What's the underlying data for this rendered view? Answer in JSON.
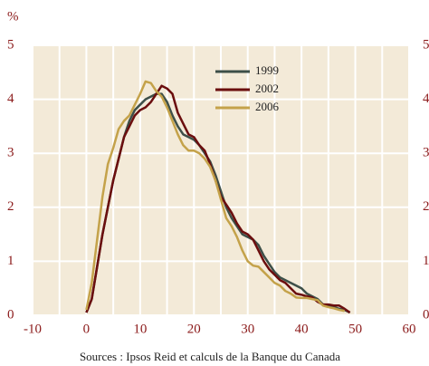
{
  "chart_data": {
    "type": "line",
    "y_label": "%",
    "source": "Sources : Ipsos Reid et calculs de la Banque du Canada",
    "x": [
      0,
      1,
      2,
      3,
      4,
      5,
      6,
      7,
      8,
      9,
      10,
      11,
      12,
      13,
      14,
      15,
      16,
      17,
      18,
      19,
      20,
      21,
      22,
      23,
      24,
      25,
      26,
      27,
      28,
      29,
      30,
      31,
      32,
      33,
      34,
      35,
      36,
      37,
      38,
      39,
      40,
      41,
      42,
      43,
      44,
      45,
      46,
      47,
      48,
      49
    ],
    "series": [
      {
        "name": "1999",
        "color": "#3d4f48",
        "values": [
          0.05,
          0.3,
          0.9,
          1.5,
          2.0,
          2.5,
          2.9,
          3.3,
          3.6,
          3.8,
          3.9,
          4.0,
          4.05,
          4.1,
          4.1,
          3.95,
          3.7,
          3.5,
          3.35,
          3.3,
          3.25,
          3.15,
          3.0,
          2.85,
          2.6,
          2.3,
          2.0,
          1.8,
          1.65,
          1.5,
          1.45,
          1.4,
          1.3,
          1.1,
          0.95,
          0.8,
          0.7,
          0.65,
          0.6,
          0.55,
          0.5,
          0.4,
          0.35,
          0.3,
          0.2,
          0.18,
          0.15,
          0.12,
          0.1,
          0.05
        ]
      },
      {
        "name": "2002",
        "color": "#6b0e0e",
        "values": [
          0.05,
          0.3,
          0.9,
          1.5,
          2.0,
          2.5,
          2.9,
          3.3,
          3.5,
          3.7,
          3.8,
          3.85,
          3.95,
          4.1,
          4.25,
          4.2,
          4.1,
          3.75,
          3.55,
          3.35,
          3.3,
          3.15,
          3.05,
          2.8,
          2.5,
          2.2,
          2.05,
          1.9,
          1.7,
          1.55,
          1.5,
          1.4,
          1.2,
          1.0,
          0.85,
          0.75,
          0.65,
          0.6,
          0.5,
          0.4,
          0.38,
          0.35,
          0.33,
          0.25,
          0.2,
          0.2,
          0.18,
          0.18,
          0.12,
          0.05
        ]
      },
      {
        "name": "2006",
        "color": "#c4a24a",
        "values": [
          0.1,
          0.6,
          1.4,
          2.2,
          2.8,
          3.1,
          3.45,
          3.6,
          3.7,
          3.9,
          4.1,
          4.33,
          4.3,
          4.15,
          4.05,
          3.85,
          3.6,
          3.35,
          3.15,
          3.05,
          3.05,
          3.0,
          2.9,
          2.75,
          2.5,
          2.15,
          1.8,
          1.65,
          1.45,
          1.2,
          1.0,
          0.92,
          0.9,
          0.8,
          0.7,
          0.6,
          0.55,
          0.45,
          0.4,
          0.33,
          0.32,
          0.32,
          0.3,
          0.28,
          0.18,
          0.15,
          0.13,
          0.1,
          0.08,
          null
        ]
      }
    ],
    "xlim": [
      -10,
      60
    ],
    "xticks": [
      -10,
      0,
      10,
      20,
      30,
      40,
      50,
      60
    ],
    "ylim": [
      0,
      5
    ],
    "yticks": [
      0,
      1,
      2,
      3,
      4,
      5
    ],
    "y2lim": [
      0,
      5
    ],
    "y2ticks": [
      0,
      1,
      2,
      3,
      4,
      5
    ],
    "grid": true
  }
}
